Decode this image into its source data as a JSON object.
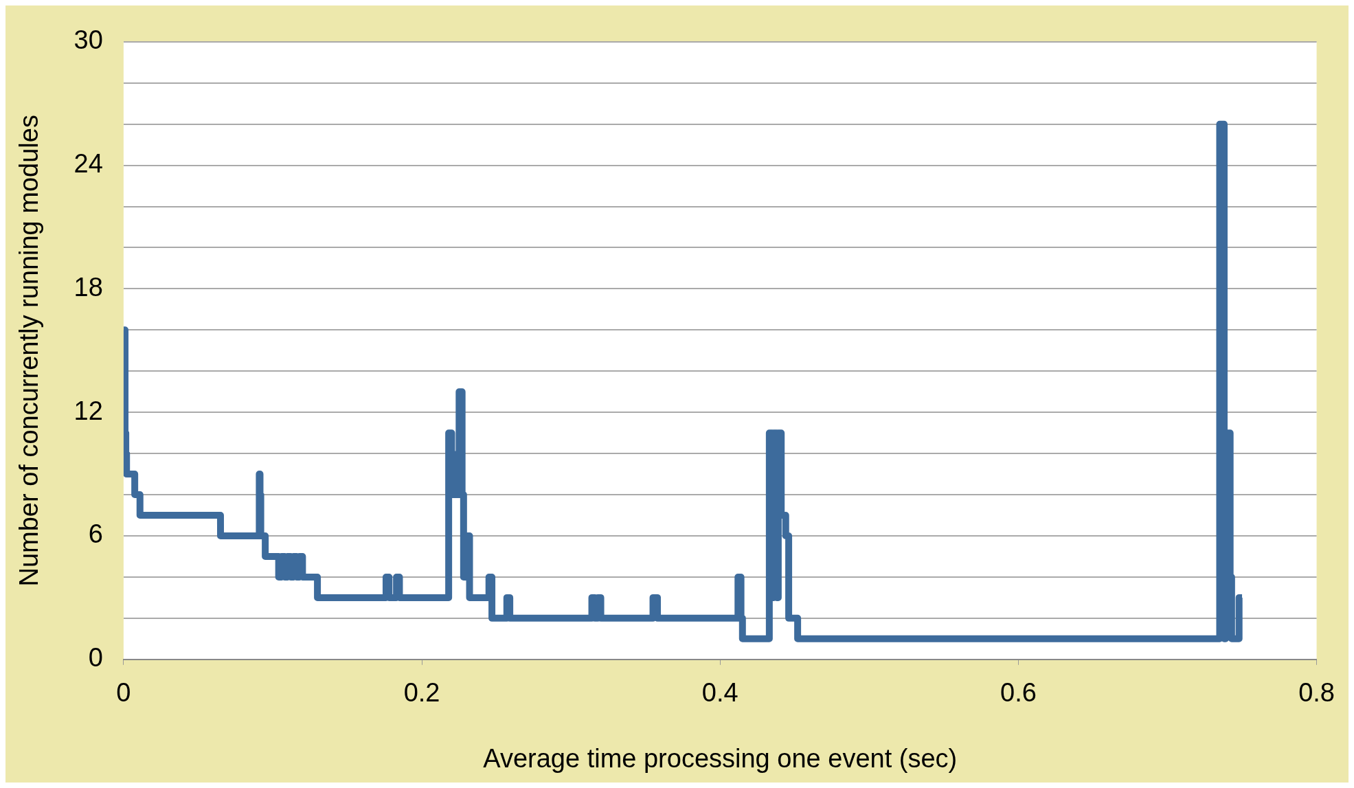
{
  "chart_data": {
    "type": "step",
    "xlabel": "Average time processing one event (sec)",
    "ylabel": "Number of concurrently running modules",
    "xlim": [
      0,
      0.8
    ],
    "xticks": [
      0,
      0.2,
      0.4,
      0.6,
      0.8
    ],
    "ylim": [
      0,
      30
    ],
    "yticks": [
      0,
      {
        "value": 2,
        "label": null
      },
      {
        "value": 4,
        "label": null
      },
      6,
      {
        "value": 8,
        "label": null
      },
      {
        "value": 10,
        "label": null
      },
      12,
      {
        "value": 14,
        "label": null
      },
      {
        "value": 16,
        "label": null
      },
      18,
      {
        "value": 20,
        "label": null
      },
      {
        "value": 22,
        "label": null
      },
      24,
      {
        "value": 26,
        "label": null
      },
      {
        "value": 28,
        "label": null
      },
      30
    ],
    "grid": "y",
    "legend": false,
    "marker": "none",
    "line_style": "solid",
    "series": [
      {
        "color": "#3d6b9c",
        "x": [
          0,
          0.001,
          0.0015,
          0.002,
          0.0075,
          0.011,
          0.065,
          0.091,
          0.0915,
          0.092,
          0.095,
          0.104,
          0.106,
          0.108,
          0.11,
          0.112,
          0.114,
          0.116,
          0.118,
          0.12,
          0.13,
          0.176,
          0.178,
          0.183,
          0.185,
          0.218,
          0.22,
          0.221,
          0.225,
          0.227,
          0.228,
          0.23,
          0.232,
          0.245,
          0.247,
          0.257,
          0.259,
          0.314,
          0.316,
          0.318,
          0.32,
          0.323,
          0.355,
          0.358,
          0.412,
          0.414,
          0.415,
          0.433,
          0.435,
          0.436,
          0.438,
          0.439,
          0.441,
          0.444,
          0.446,
          0.452,
          0.735,
          0.738,
          0.739,
          0.742,
          0.743,
          0.748,
          0.75
        ],
        "values": [
          16,
          11,
          10,
          9,
          8,
          7,
          6,
          9,
          8,
          6,
          5,
          4,
          5,
          4,
          5,
          4,
          5,
          4,
          5,
          4,
          3,
          4,
          3,
          4,
          3,
          11,
          10,
          8,
          13,
          8,
          4,
          6,
          3,
          4,
          2,
          3,
          2,
          3,
          2,
          3,
          2,
          2,
          3,
          2,
          4,
          2,
          1,
          11,
          3,
          11,
          3,
          11,
          7,
          6,
          2,
          1,
          26,
          1,
          11,
          4,
          1,
          3,
          3
        ]
      }
    ]
  }
}
